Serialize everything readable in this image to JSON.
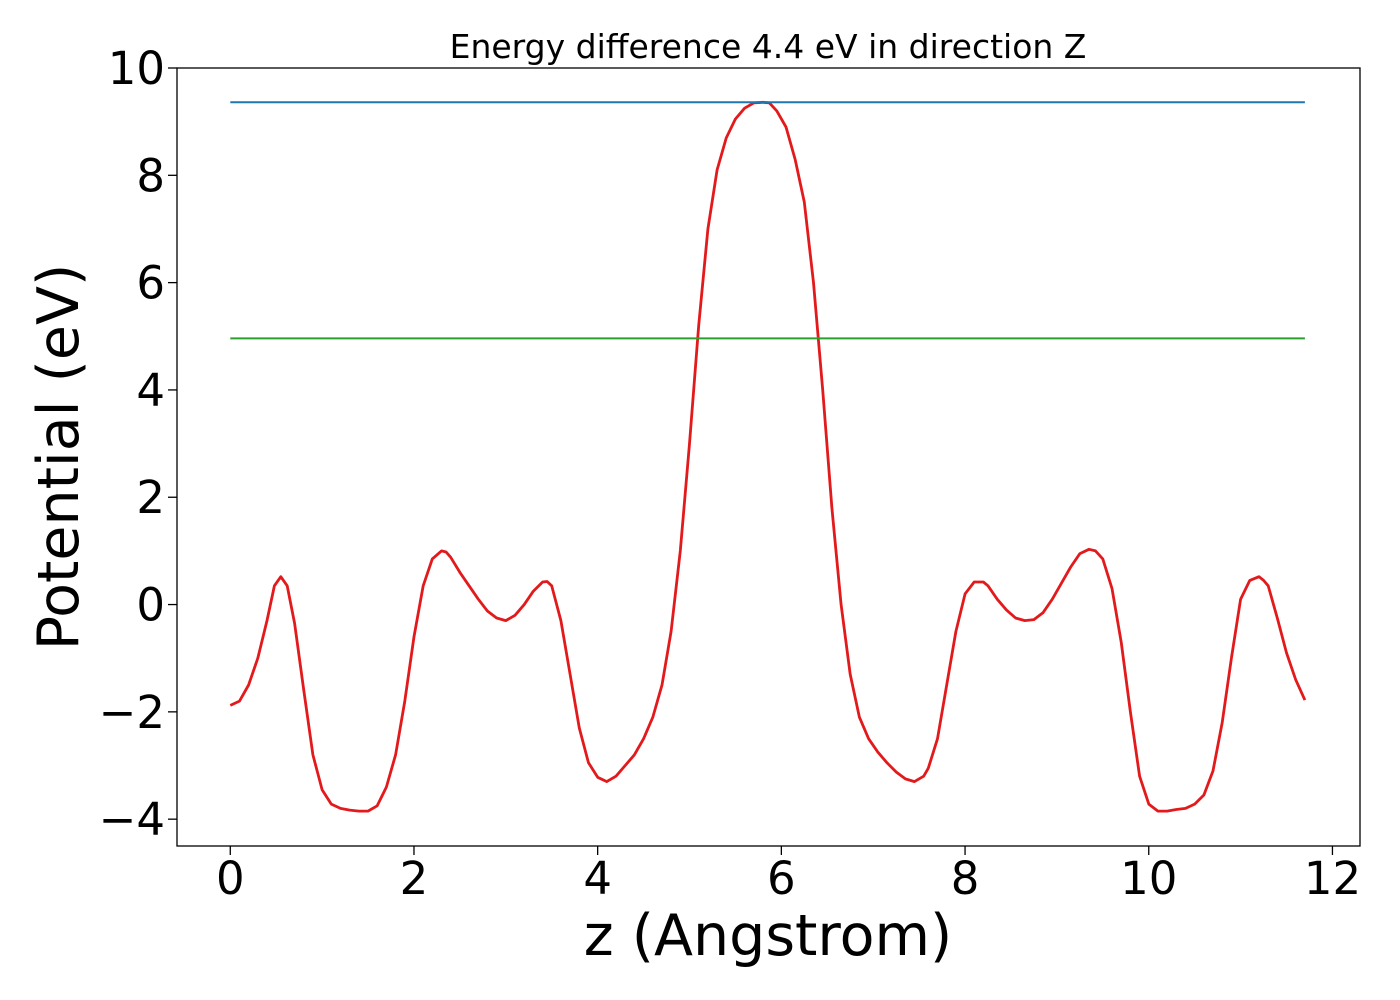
{
  "chart_data": {
    "type": "line",
    "title": "Energy difference 4.4 eV in direction Z",
    "xlabel": "z (Angstrom)",
    "ylabel": "Potential (eV)",
    "xlim": [
      -0.58,
      12.3
    ],
    "ylim": [
      -4.5,
      10.0
    ],
    "xticks": [
      0,
      2,
      4,
      6,
      8,
      10,
      12
    ],
    "xtick_labels": [
      "0",
      "2",
      "4",
      "6",
      "8",
      "10",
      "12"
    ],
    "yticks": [
      -4,
      -2,
      0,
      2,
      4,
      6,
      8,
      10
    ],
    "ytick_labels": [
      "−4",
      "−2",
      "0",
      "2",
      "4",
      "6",
      "8",
      "10"
    ],
    "grid": false,
    "legend": "none",
    "series": [
      {
        "color": "#e31a1c",
        "x": [
          0.0,
          0.1,
          0.2,
          0.3,
          0.4,
          0.48,
          0.55,
          0.62,
          0.7,
          0.8,
          0.9,
          1.0,
          1.1,
          1.2,
          1.3,
          1.4,
          1.5,
          1.6,
          1.7,
          1.8,
          1.9,
          2.0,
          2.1,
          2.2,
          2.3,
          2.35,
          2.4,
          2.5,
          2.6,
          2.7,
          2.8,
          2.9,
          3.0,
          3.1,
          3.2,
          3.3,
          3.4,
          3.45,
          3.5,
          3.6,
          3.7,
          3.8,
          3.9,
          4.0,
          4.1,
          4.2,
          4.3,
          4.4,
          4.5,
          4.6,
          4.7,
          4.8,
          4.9,
          5.0,
          5.1,
          5.2,
          5.3,
          5.4,
          5.5,
          5.6,
          5.7,
          5.8,
          5.87,
          5.95,
          6.05,
          6.15,
          6.25,
          6.35,
          6.45,
          6.55,
          6.65,
          6.75,
          6.85,
          6.95,
          7.05,
          7.15,
          7.25,
          7.35,
          7.45,
          7.55,
          7.6,
          7.7,
          7.8,
          7.9,
          8.0,
          8.1,
          8.2,
          8.25,
          8.35,
          8.45,
          8.55,
          8.65,
          8.75,
          8.85,
          8.95,
          9.05,
          9.15,
          9.25,
          9.35,
          9.42,
          9.5,
          9.6,
          9.7,
          9.8,
          9.9,
          10.0,
          10.1,
          10.2,
          10.3,
          10.4,
          10.5,
          10.6,
          10.7,
          10.8,
          10.9,
          11.0,
          11.1,
          11.2,
          11.25,
          11.3,
          11.4,
          11.5,
          11.6,
          11.7
        ],
        "y": [
          -1.88,
          -1.8,
          -1.5,
          -1.0,
          -0.3,
          0.35,
          0.52,
          0.35,
          -0.35,
          -1.6,
          -2.8,
          -3.45,
          -3.72,
          -3.8,
          -3.83,
          -3.85,
          -3.85,
          -3.75,
          -3.4,
          -2.8,
          -1.8,
          -0.6,
          0.35,
          0.85,
          1.0,
          0.98,
          0.88,
          0.6,
          0.35,
          0.1,
          -0.12,
          -0.25,
          -0.3,
          -0.2,
          0.0,
          0.25,
          0.42,
          0.43,
          0.35,
          -0.3,
          -1.3,
          -2.3,
          -2.95,
          -3.22,
          -3.3,
          -3.2,
          -3.0,
          -2.8,
          -2.5,
          -2.1,
          -1.5,
          -0.5,
          1.0,
          3.0,
          5.2,
          7.0,
          8.1,
          8.7,
          9.05,
          9.25,
          9.35,
          9.36,
          9.35,
          9.2,
          8.9,
          8.3,
          7.5,
          6.0,
          4.0,
          1.8,
          0.0,
          -1.3,
          -2.1,
          -2.5,
          -2.75,
          -2.95,
          -3.12,
          -3.25,
          -3.3,
          -3.2,
          -3.05,
          -2.5,
          -1.5,
          -0.5,
          0.2,
          0.42,
          0.42,
          0.35,
          0.1,
          -0.1,
          -0.25,
          -0.3,
          -0.28,
          -0.15,
          0.1,
          0.4,
          0.7,
          0.95,
          1.03,
          1.0,
          0.85,
          0.3,
          -0.7,
          -2.0,
          -3.2,
          -3.72,
          -3.85,
          -3.85,
          -3.82,
          -3.8,
          -3.72,
          -3.55,
          -3.1,
          -2.2,
          -1.0,
          0.1,
          0.45,
          0.52,
          0.45,
          0.35,
          -0.25,
          -0.9,
          -1.4,
          -1.78
        ]
      },
      {
        "color": "#1f77b4",
        "x": [
          0.0,
          11.7
        ],
        "y": [
          9.36,
          9.36
        ]
      },
      {
        "color": "#2ca02c",
        "x": [
          0.0,
          11.7
        ],
        "y": [
          4.96,
          4.96
        ]
      }
    ]
  }
}
